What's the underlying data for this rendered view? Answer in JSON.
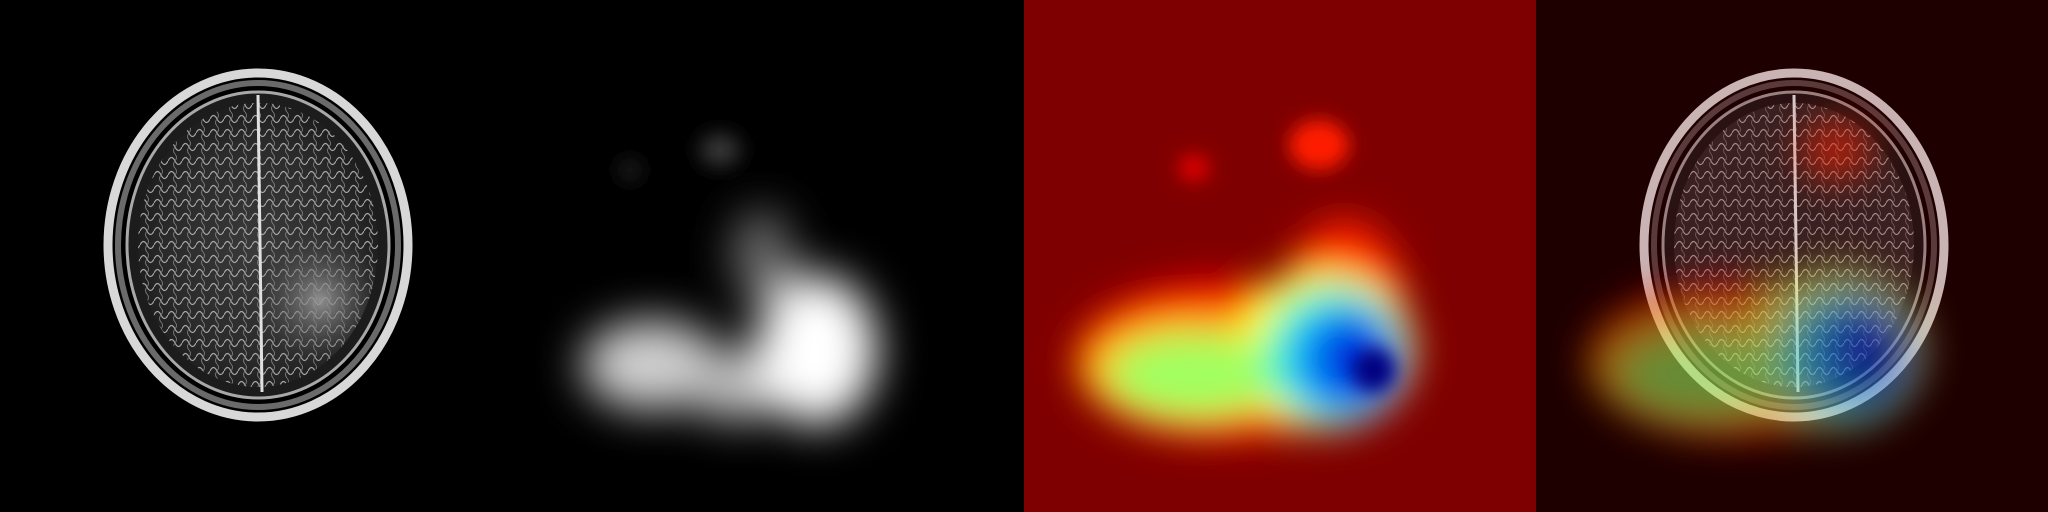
{
  "figure": {
    "panels": [
      {
        "id": "mri-slice",
        "description_kind": "grayscale axial brain MRI"
      },
      {
        "id": "attention-mask",
        "description_kind": "grayscale saliency mask"
      },
      {
        "id": "jet-heatmap",
        "description_kind": "jet colormap heatmap"
      },
      {
        "id": "overlay",
        "description_kind": "heatmap blended over MRI"
      }
    ]
  },
  "colors": {
    "background": "#000000",
    "heatmap_base": "#7f0000",
    "overlay_base": "#1f0000"
  }
}
